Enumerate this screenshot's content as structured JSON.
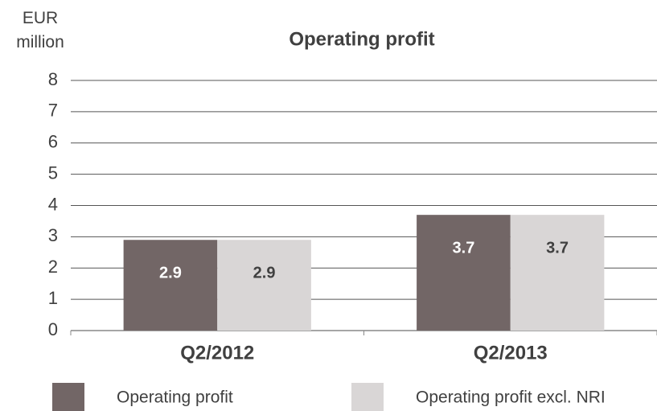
{
  "chart_data": {
    "type": "bar",
    "title": "Operating profit",
    "y_label": "EUR million",
    "categories": [
      "Q2/2012",
      "Q2/2013"
    ],
    "series": [
      {
        "name": "Operating profit",
        "color": "#726666",
        "label_color": "#ffffff",
        "values": [
          2.9,
          3.7
        ]
      },
      {
        "name": "Operating profit excl. NRI",
        "color": "#d9d6d6",
        "label_color": "#404040",
        "values": [
          2.9,
          3.7
        ]
      }
    ],
    "ylim": [
      0,
      8
    ],
    "yticks": [
      0,
      1,
      2,
      3,
      4,
      5,
      6,
      7,
      8
    ],
    "grid": true,
    "legend": "bottom"
  }
}
